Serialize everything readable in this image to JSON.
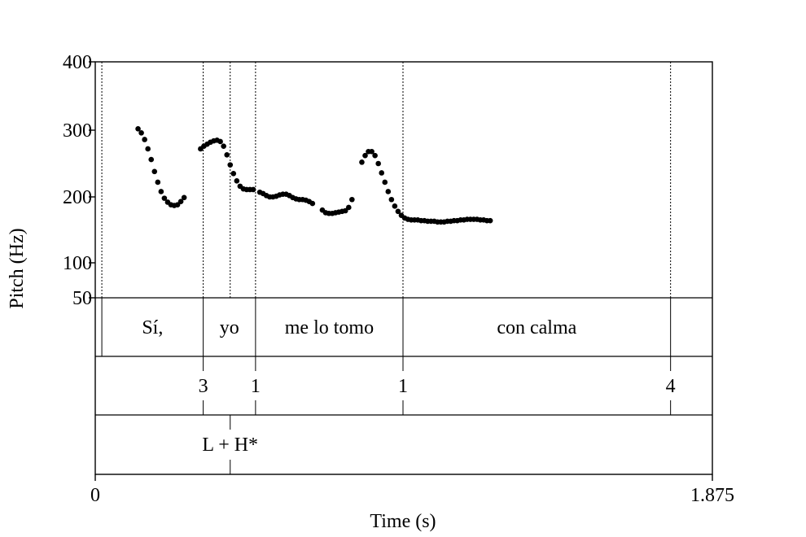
{
  "chart_data": {
    "type": "scatter",
    "title": "",
    "xlabel": "Time (s)",
    "ylabel": "Pitch (Hz)",
    "xlim": [
      0,
      1.875
    ],
    "ylim": [
      50,
      400
    ],
    "y_ticks": [
      {
        "value": 400,
        "label": "400"
      },
      {
        "value": 300,
        "label": "300"
      },
      {
        "value": 200,
        "label": "200"
      },
      {
        "value": 100,
        "label": "100"
      },
      {
        "value": 50,
        "label": "50"
      }
    ],
    "x_ticks": [
      {
        "value": 0,
        "label": "0"
      },
      {
        "value": 1.875,
        "label": "1.875"
      }
    ],
    "series": [
      {
        "points": [
          [
            0.13,
            302
          ],
          [
            0.14,
            296
          ],
          [
            0.15,
            286
          ],
          [
            0.16,
            272
          ],
          [
            0.17,
            256
          ],
          [
            0.18,
            238
          ],
          [
            0.19,
            222
          ],
          [
            0.2,
            208
          ],
          [
            0.21,
            198
          ],
          [
            0.22,
            192
          ],
          [
            0.23,
            188
          ],
          [
            0.24,
            187
          ],
          [
            0.25,
            188
          ],
          [
            0.26,
            193
          ],
          [
            0.27,
            199
          ],
          [
            0.32,
            272
          ],
          [
            0.33,
            276
          ],
          [
            0.34,
            279
          ],
          [
            0.35,
            282
          ],
          [
            0.36,
            284
          ],
          [
            0.37,
            285
          ],
          [
            0.38,
            283
          ],
          [
            0.39,
            276
          ],
          [
            0.4,
            263
          ],
          [
            0.41,
            248
          ],
          [
            0.42,
            235
          ],
          [
            0.43,
            224
          ],
          [
            0.44,
            216
          ],
          [
            0.45,
            212
          ],
          [
            0.46,
            211
          ],
          [
            0.47,
            211
          ],
          [
            0.48,
            211
          ],
          [
            0.5,
            207
          ],
          [
            0.51,
            205
          ],
          [
            0.52,
            202
          ],
          [
            0.53,
            200
          ],
          [
            0.54,
            200
          ],
          [
            0.55,
            201
          ],
          [
            0.56,
            203
          ],
          [
            0.57,
            204
          ],
          [
            0.58,
            204
          ],
          [
            0.59,
            202
          ],
          [
            0.6,
            199
          ],
          [
            0.61,
            197
          ],
          [
            0.62,
            196
          ],
          [
            0.63,
            196
          ],
          [
            0.64,
            195
          ],
          [
            0.65,
            193
          ],
          [
            0.66,
            190
          ],
          [
            0.69,
            180
          ],
          [
            0.7,
            176
          ],
          [
            0.71,
            175
          ],
          [
            0.72,
            175
          ],
          [
            0.73,
            176
          ],
          [
            0.74,
            177
          ],
          [
            0.75,
            178
          ],
          [
            0.76,
            179
          ],
          [
            0.77,
            184
          ],
          [
            0.78,
            196
          ],
          [
            0.81,
            252
          ],
          [
            0.82,
            262
          ],
          [
            0.83,
            268
          ],
          [
            0.84,
            268
          ],
          [
            0.85,
            262
          ],
          [
            0.86,
            250
          ],
          [
            0.87,
            236
          ],
          [
            0.88,
            222
          ],
          [
            0.89,
            208
          ],
          [
            0.9,
            196
          ],
          [
            0.91,
            186
          ],
          [
            0.92,
            178
          ],
          [
            0.93,
            172
          ],
          [
            0.94,
            168
          ],
          [
            0.95,
            166
          ],
          [
            0.96,
            165
          ],
          [
            0.97,
            165
          ],
          [
            0.98,
            165
          ],
          [
            0.99,
            164
          ],
          [
            1.0,
            164
          ],
          [
            1.01,
            163
          ],
          [
            1.02,
            163
          ],
          [
            1.03,
            163
          ],
          [
            1.04,
            162
          ],
          [
            1.05,
            162
          ],
          [
            1.06,
            162
          ],
          [
            1.07,
            163
          ],
          [
            1.08,
            163
          ],
          [
            1.09,
            164
          ],
          [
            1.1,
            164
          ],
          [
            1.11,
            165
          ],
          [
            1.12,
            165
          ],
          [
            1.13,
            166
          ],
          [
            1.14,
            166
          ],
          [
            1.15,
            166
          ],
          [
            1.16,
            166
          ],
          [
            1.17,
            165
          ],
          [
            1.18,
            165
          ],
          [
            1.19,
            164
          ],
          [
            1.2,
            164
          ]
        ]
      }
    ],
    "boundaries_time": [
      0.02,
      0.328,
      0.41,
      0.487,
      0.935,
      1.748
    ],
    "tiers": [
      {
        "kind": "words",
        "intervals": [
          {
            "start": 0.02,
            "end": 0.328,
            "label": "Sí,"
          },
          {
            "start": 0.328,
            "end": 0.487,
            "label": "yo"
          },
          {
            "start": 0.487,
            "end": 0.935,
            "label": "me lo tomo"
          },
          {
            "start": 0.935,
            "end": 1.748,
            "label": "con calma"
          }
        ]
      },
      {
        "kind": "break-indices",
        "points": [
          {
            "time": 0.328,
            "label": "3"
          },
          {
            "time": 0.487,
            "label": "1"
          },
          {
            "time": 0.935,
            "label": "1"
          },
          {
            "time": 1.748,
            "label": "4"
          }
        ]
      },
      {
        "kind": "tones",
        "points": [
          {
            "time": 0.41,
            "label": "L + H*"
          }
        ]
      }
    ]
  }
}
